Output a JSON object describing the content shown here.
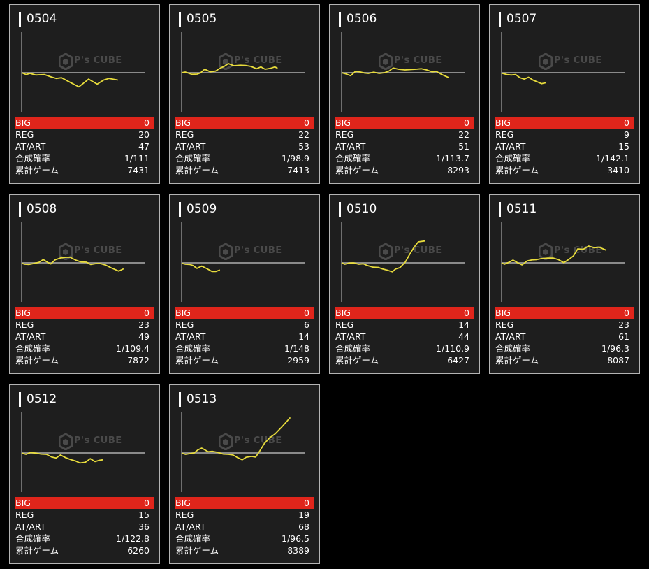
{
  "watermark": "P's CUBE",
  "colors": {
    "line": "#e8dc3c",
    "big_bg": "#e0251b",
    "axis": "#8a8a8a",
    "card_bg": "#1e1e1e"
  },
  "labels": {
    "big": "BIG",
    "reg": "REG",
    "atart": "AT/ART",
    "prob": "合成確率",
    "games": "累計ゲーム"
  },
  "chart_data": {
    "type": "line",
    "xlabel": "games",
    "ylabel": "difference",
    "xlim": [
      0,
      9550
    ],
    "ylim": [
      -2850,
      2900
    ],
    "machines": [
      {
        "id": "0504",
        "big": "0",
        "reg": "20",
        "atart": "47",
        "prob": "1/111",
        "games": "7431",
        "x": [
          0,
          333,
          650,
          1083,
          1750,
          2250,
          2667,
          3083,
          3667,
          4417,
          5167,
          5833,
          6333,
          6750,
          7431
        ],
        "y": [
          0,
          -133,
          -50,
          -167,
          -133,
          -300,
          -417,
          -367,
          -667,
          -1033,
          -467,
          -833,
          -533,
          -417,
          -533
        ]
      },
      {
        "id": "0505",
        "big": "0",
        "reg": "22",
        "atart": "53",
        "prob": "1/98.9",
        "games": "7413",
        "x": [
          0,
          283,
          783,
          1200,
          1450,
          1783,
          2200,
          2617,
          2950,
          3283,
          3617,
          4033,
          4533,
          4950,
          5367,
          5783,
          6117,
          6450,
          6867,
          7200,
          7413
        ],
        "y": [
          0,
          50,
          -117,
          -100,
          -17,
          250,
          67,
          117,
          317,
          450,
          650,
          500,
          533,
          517,
          450,
          283,
          417,
          250,
          317,
          417,
          317
        ]
      },
      {
        "id": "0506",
        "big": "0",
        "reg": "22",
        "atart": "51",
        "prob": "1/113.7",
        "games": "8293",
        "x": [
          0,
          317,
          700,
          1067,
          1400,
          1733,
          2067,
          2483,
          2900,
          3317,
          3650,
          3983,
          4400,
          4900,
          5400,
          5733,
          6150,
          6567,
          6983,
          7317,
          7733,
          8293
        ],
        "y": [
          0,
          -83,
          -217,
          100,
          67,
          -17,
          -50,
          33,
          -50,
          0,
          117,
          333,
          250,
          200,
          233,
          250,
          283,
          200,
          67,
          100,
          -133,
          -367
        ]
      },
      {
        "id": "0507",
        "big": "0",
        "reg": "9",
        "atart": "15",
        "prob": "1/142.1",
        "games": "3410",
        "x": [
          0,
          417,
          750,
          1083,
          1417,
          1750,
          2083,
          2417,
          2750,
          3083,
          3410
        ],
        "y": [
          -33,
          -133,
          -167,
          -133,
          -367,
          -467,
          -333,
          -533,
          -667,
          -800,
          -733
        ]
      },
      {
        "id": "0508",
        "big": "0",
        "reg": "23",
        "atart": "49",
        "prob": "1/109.4",
        "games": "7872",
        "x": [
          0,
          250,
          583,
          917,
          1333,
          1667,
          2000,
          2250,
          2583,
          3000,
          3417,
          3750,
          4167,
          4583,
          5000,
          5333,
          5750,
          6083,
          6500,
          6917,
          7500,
          7872
        ],
        "y": [
          -33,
          -100,
          -117,
          -50,
          33,
          233,
          33,
          -83,
          217,
          350,
          400,
          400,
          200,
          67,
          50,
          -117,
          -50,
          -50,
          -167,
          -367,
          -600,
          -433
        ]
      },
      {
        "id": "0509",
        "big": "0",
        "reg": "6",
        "atart": "14",
        "prob": "1/148",
        "games": "2959",
        "x": [
          0,
          300,
          633,
          883,
          1183,
          1550,
          1967,
          2350,
          2633,
          2959
        ],
        "y": [
          -33,
          -100,
          -117,
          -200,
          -400,
          -233,
          -433,
          -633,
          -633,
          -517
        ]
      },
      {
        "id": "0510",
        "big": "0",
        "reg": "14",
        "atart": "44",
        "prob": "1/110.9",
        "games": "6427",
        "x": [
          0,
          250,
          583,
          917,
          1333,
          1667,
          2000,
          2417,
          2833,
          3167,
          3583,
          3917,
          4167,
          4500,
          4917,
          5250,
          5583,
          5917,
          6427
        ],
        "y": [
          0,
          -100,
          -17,
          0,
          -100,
          -67,
          -200,
          -317,
          -333,
          -450,
          -550,
          -650,
          -450,
          -350,
          50,
          600,
          1100,
          1500,
          1567
        ]
      },
      {
        "id": "0511",
        "big": "0",
        "reg": "23",
        "atart": "61",
        "prob": "1/96.3",
        "games": "8087",
        "x": [
          0,
          217,
          550,
          883,
          1217,
          1583,
          1967,
          2350,
          2717,
          3050,
          3467,
          3967,
          4383,
          4800,
          5217,
          5550,
          5883,
          6300,
          6717,
          7133,
          7550,
          8087
        ],
        "y": [
          0,
          -100,
          33,
          200,
          17,
          -150,
          133,
          217,
          233,
          300,
          333,
          350,
          233,
          17,
          267,
          500,
          1000,
          967,
          1200,
          1083,
          1117,
          900
        ]
      },
      {
        "id": "0512",
        "big": "0",
        "reg": "15",
        "atart": "36",
        "prob": "1/122.8",
        "games": "6260",
        "x": [
          0,
          333,
          700,
          1083,
          1500,
          1917,
          2333,
          2667,
          3000,
          3417,
          3833,
          4167,
          4500,
          4917,
          5300,
          5667,
          6000,
          6260
        ],
        "y": [
          -17,
          -100,
          33,
          -17,
          -83,
          -100,
          -300,
          -367,
          -150,
          -350,
          -500,
          -583,
          -733,
          -683,
          -417,
          -633,
          -533,
          -500
        ]
      },
      {
        "id": "0513",
        "big": "0",
        "reg": "19",
        "atart": "68",
        "prob": "1/96.5",
        "games": "8389",
        "x": [
          0,
          300,
          633,
          967,
          1250,
          1550,
          2050,
          2383,
          2800,
          3217,
          3633,
          3967,
          4300,
          4683,
          4967,
          5383,
          5717,
          6050,
          6383,
          6800,
          7217,
          7717,
          8389
        ],
        "y": [
          -17,
          -100,
          -50,
          0,
          217,
          350,
          83,
          117,
          33,
          -83,
          -100,
          -150,
          -333,
          -500,
          -317,
          -250,
          -300,
          167,
          667,
          1083,
          1367,
          1833,
          2533
        ]
      }
    ]
  }
}
